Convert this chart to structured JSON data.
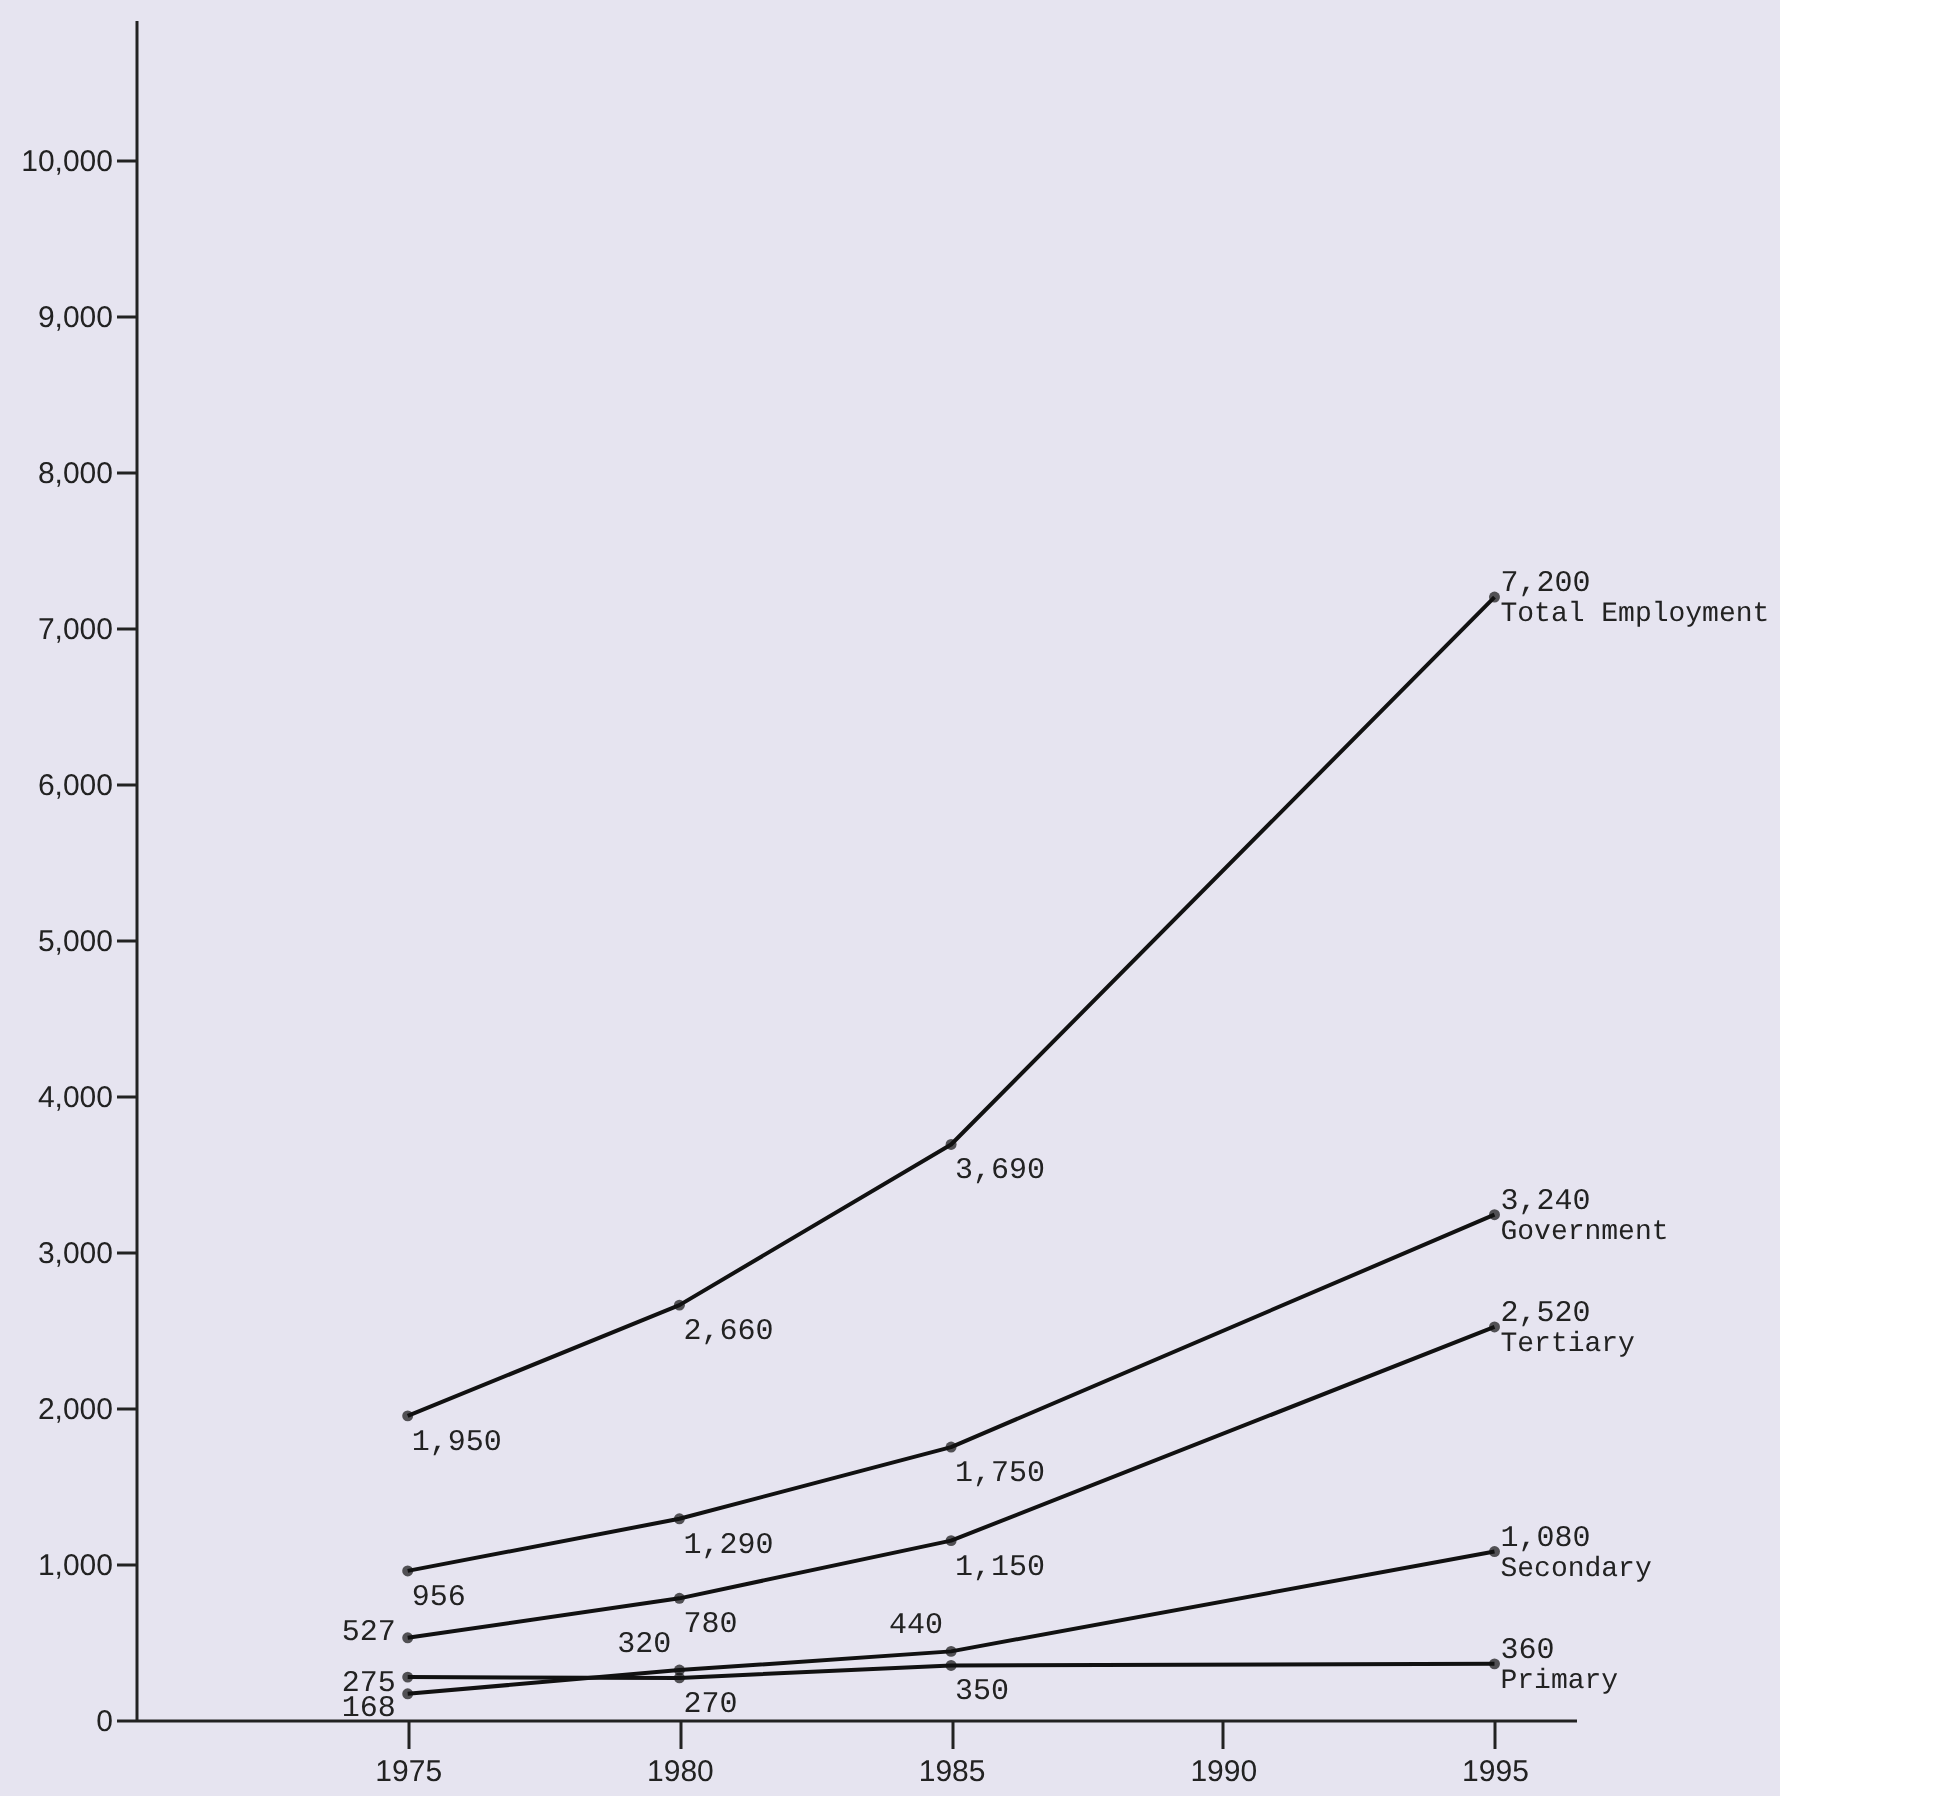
{
  "chart_data": {
    "type": "line",
    "x": [
      1975,
      1980,
      1985,
      1995
    ],
    "xlim": [
      1970,
      1996.5
    ],
    "xticks": [
      1975,
      1980,
      1985,
      1990,
      1995
    ],
    "ylim": [
      0,
      10900
    ],
    "yticks": [
      0,
      {
        "value": 1000,
        "label": "1,000"
      },
      {
        "value": 2000,
        "label": "2,000"
      },
      {
        "value": 3000,
        "label": "3,000"
      },
      {
        "value": 4000,
        "label": "4,000"
      },
      {
        "value": 5000,
        "label": "5,000"
      },
      {
        "value": 6000,
        "label": "6,000"
      },
      {
        "value": 7000,
        "label": "7,000"
      },
      {
        "value": 8000,
        "label": "8,000"
      },
      {
        "value": 9000,
        "label": "9,000"
      },
      {
        "value": 10000,
        "label": "10,000"
      }
    ],
    "series": [
      {
        "name": "Total Employment",
        "color": "#111111",
        "values": [
          1950,
          2660,
          3690,
          7200
        ],
        "value_labels": [
          "1,950",
          "2,660",
          "3,690",
          "7,200"
        ]
      },
      {
        "name": "Government",
        "color": "#111111",
        "values": [
          956,
          1290,
          1750,
          3240
        ],
        "value_labels": [
          "956",
          "1,290",
          "1,750",
          "3,240"
        ]
      },
      {
        "name": "Tertiary",
        "color": "#111111",
        "values": [
          527,
          780,
          1150,
          2520
        ],
        "value_labels": [
          "527",
          "780",
          "1,150",
          "2,520"
        ]
      },
      {
        "name": "Secondary",
        "color": "#111111",
        "values": [
          168,
          320,
          440,
          1080
        ],
        "value_labels": [
          "168",
          "320",
          "440",
          "1,080"
        ]
      },
      {
        "name": "Primary",
        "color": "#111111",
        "values": [
          275,
          270,
          350,
          360
        ],
        "value_labels": [
          "275",
          "270",
          "350",
          "360"
        ]
      }
    ],
    "marker": "circle",
    "line_style": "solid",
    "grid": false
  }
}
